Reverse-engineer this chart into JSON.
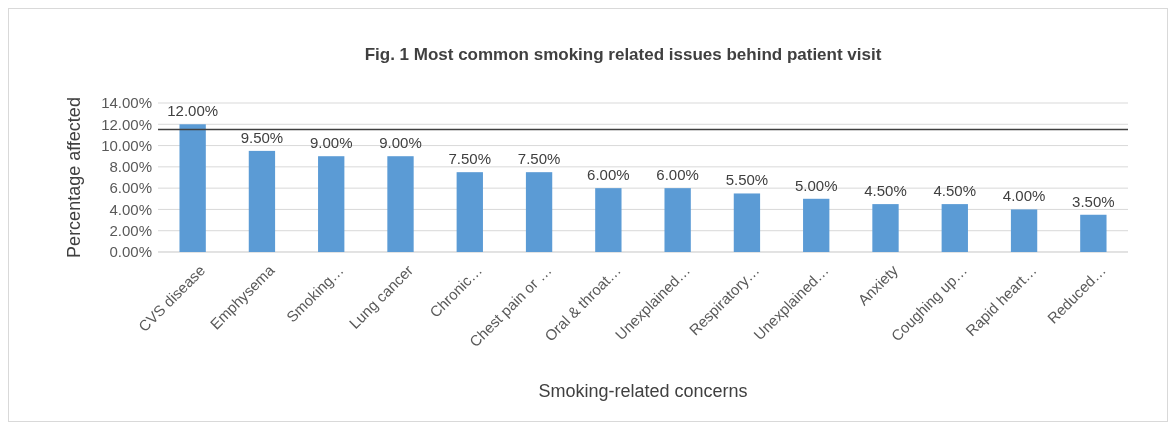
{
  "chart_data": {
    "type": "bar",
    "title": "Fig. 1 Most common smoking related issues behind patient visit",
    "xlabel": "Smoking-related  concerns",
    "ylabel": "Percentage affected",
    "categories": [
      "CVS disease",
      "Emphysema",
      "Smoking…",
      "Lung cancer",
      "Chronic…",
      "Chest pain or …",
      "Oral & throat…",
      "Unexplained…",
      "Respiratory…",
      "Unexplained…",
      "Anxiety",
      "Coughing up…",
      "Rapid heart…",
      "Reduced…"
    ],
    "values": [
      12,
      9.5,
      9,
      9,
      7.5,
      7.5,
      6,
      6,
      5.5,
      5,
      4.5,
      4.5,
      4,
      3.5
    ],
    "value_labels": [
      "12.00%",
      "9.50%",
      "9.00%",
      "9.00%",
      "7.50%",
      "7.50%",
      "6.00%",
      "6.00%",
      "5.50%",
      "5.00%",
      "4.50%",
      "4.50%",
      "4.00%",
      "3.50%"
    ],
    "color": "#5b9bd5",
    "ylim": [
      0,
      14
    ],
    "yticks": [
      {
        "value": 0,
        "label": "0.00%"
      },
      {
        "value": 2,
        "label": "2.00%"
      },
      {
        "value": 4,
        "label": "4.00%"
      },
      {
        "value": 6,
        "label": "6.00%"
      },
      {
        "value": 8,
        "label": "8.00%"
      },
      {
        "value": 10,
        "label": "10.00%"
      },
      {
        "value": 12,
        "label": "12.00%"
      },
      {
        "value": 14,
        "label": "14.00%"
      }
    ],
    "grid": "y",
    "ref_lines": [
      {
        "axis": "y",
        "value": 11.5,
        "color": "#404040"
      }
    ]
  }
}
